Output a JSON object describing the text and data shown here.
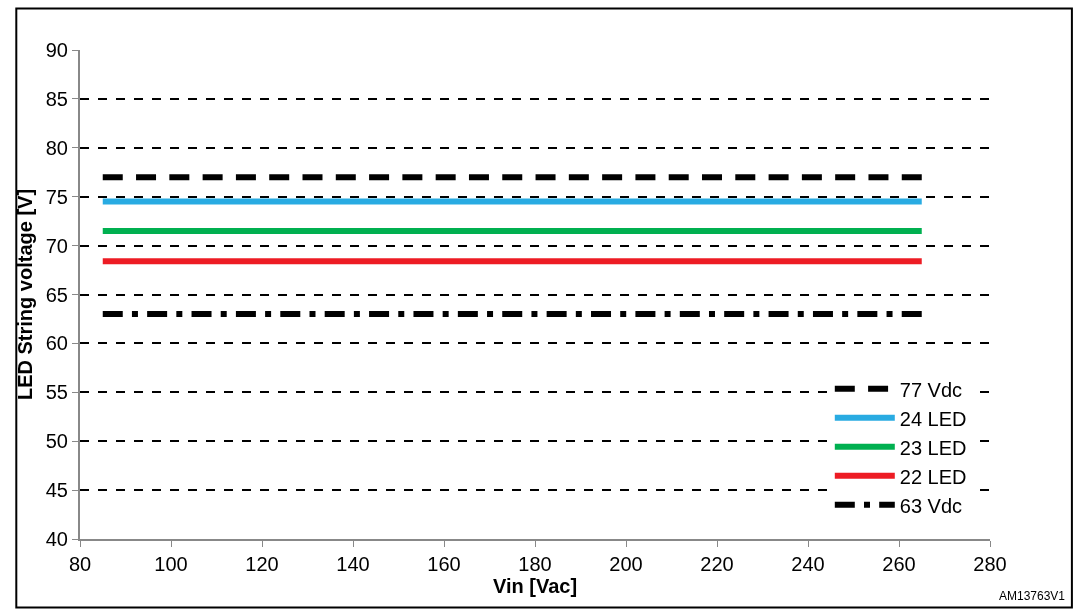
{
  "chart_data": {
    "type": "line",
    "xlabel": "Vin [Vac]",
    "ylabel": "LED String voltage [V]",
    "xlim": [
      80,
      280
    ],
    "xticks": [
      80,
      100,
      120,
      140,
      160,
      180,
      200,
      220,
      240,
      260,
      280
    ],
    "ylim": [
      40,
      90
    ],
    "yticks": [
      40,
      45,
      50,
      55,
      60,
      65,
      70,
      75,
      80,
      85,
      90
    ],
    "grid": "y",
    "legend": "bottom right",
    "marker": "none",
    "x": [
      85,
      265
    ],
    "series": [
      {
        "name": "77 Vdc",
        "color": "#000000",
        "line_style": "dashed",
        "values": [
          77,
          77
        ]
      },
      {
        "name": "24 LED",
        "color": "#29abe2",
        "line_style": "solid",
        "values": [
          74.5,
          74.5
        ]
      },
      {
        "name": "23 LED",
        "color": "#00b050",
        "line_style": "solid",
        "values": [
          71.5,
          71.5
        ]
      },
      {
        "name": "22 LED",
        "color": "#ed1c24",
        "line_style": "solid",
        "values": [
          68.4,
          68.4
        ]
      },
      {
        "name": "63 Vdc",
        "color": "#000000",
        "line_style": "dashdot",
        "values": [
          63,
          63
        ]
      }
    ],
    "annotations": [
      "AM13763V1"
    ]
  }
}
